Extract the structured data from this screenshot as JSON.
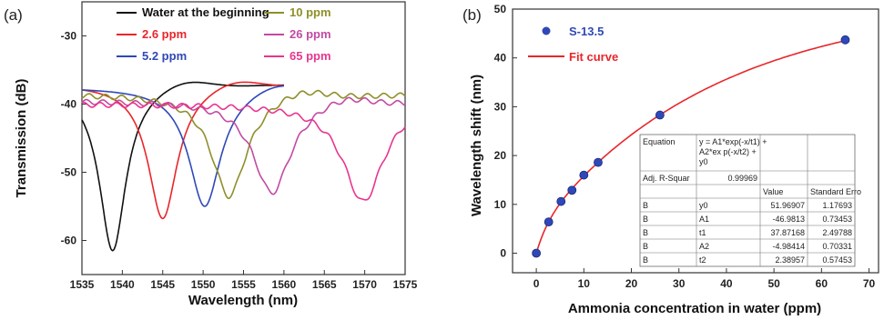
{
  "chart_data": [
    {
      "type": "line",
      "panel_label": "(a)",
      "xlabel": "Wavelength (nm)",
      "ylabel": "Transmission (dB)",
      "xlim": [
        1535,
        1575
      ],
      "ylim": [
        -65,
        -25
      ],
      "xticks": [
        "1535",
        "1540",
        "1545",
        "1550",
        "1555",
        "1560",
        "1565",
        "1570",
        "1575"
      ],
      "yticks": [
        "-30",
        "-40",
        "-50",
        "-60"
      ],
      "legend_position": "top",
      "series": [
        {
          "name": "Water at the beginning",
          "color": "#111111",
          "x_range": [
            1535,
            1560
          ],
          "dip_center": 1538.8,
          "dip_depth": -61.5,
          "baseline": -37
        },
        {
          "name": "2.6 ppm",
          "color": "#e8262b",
          "x_range": [
            1535,
            1560
          ],
          "dip_center": 1545.0,
          "dip_depth": -56.8,
          "baseline": -37
        },
        {
          "name": "5.2 ppm",
          "color": "#2f48b8",
          "x_range": [
            1535,
            1560
          ],
          "dip_center": 1550.2,
          "dip_depth": -55.0,
          "baseline": -37.5
        },
        {
          "name": "10 ppm",
          "color": "#8f8f2a",
          "x_range": [
            1535,
            1575
          ],
          "dip_center": 1553.2,
          "dip_depth": -53.5,
          "baseline": -38.5
        },
        {
          "name": "26 ppm",
          "color": "#c24aa3",
          "x_range": [
            1535,
            1575
          ],
          "dip_center": 1558.5,
          "dip_depth": -53.0,
          "baseline": -39.5
        },
        {
          "name": "65 ppm",
          "color": "#e8358f",
          "x_range": [
            1535,
            1575
          ],
          "dip_center": 1569.8,
          "dip_depth": -54.3,
          "baseline": -40
        }
      ]
    },
    {
      "type": "scatter",
      "panel_label": "(b)",
      "xlabel": "Ammonia concentration in water (ppm)",
      "ylabel": "Wavelength shift (nm)",
      "xlim": [
        -5,
        72
      ],
      "ylim": [
        -4,
        50
      ],
      "xticks": [
        "0",
        "10",
        "20",
        "30",
        "40",
        "50",
        "60",
        "70"
      ],
      "yticks": [
        "0",
        "10",
        "20",
        "30",
        "40",
        "50"
      ],
      "legend_position": "top-left",
      "series": [
        {
          "name": "S-13.5",
          "color": "#2f48b8",
          "x": [
            0,
            2.6,
            5.2,
            7.5,
            10,
            13,
            26,
            65
          ],
          "y": [
            0,
            6.4,
            10.6,
            12.9,
            16.0,
            18.6,
            28.3,
            43.7
          ]
        },
        {
          "name": "Fit curve",
          "color": "#e8262b",
          "params": {
            "y0": 51.96907,
            "A1": -46.9813,
            "t1": 37.87168,
            "A2": -4.98414,
            "t2": 2.38957
          }
        }
      ],
      "fit_table": {
        "header_row": [
          "Equation",
          "y = A1*exp(-x/t1) + A2*ex p(-x/t2) + y0",
          ""
        ],
        "adj_row": [
          "Adj. R-Squar",
          "0.99969"
        ],
        "col_headers": [
          "",
          "",
          "Value",
          "Standard Erro"
        ],
        "rows": [
          [
            "B",
            "y0",
            "51.96907",
            "1.17693"
          ],
          [
            "B",
            "A1",
            "-46.9813",
            "0.73453"
          ],
          [
            "B",
            "t1",
            "37.87168",
            "2.49788"
          ],
          [
            "B",
            "A2",
            "-4.98414",
            "0.70331"
          ],
          [
            "B",
            "t2",
            "2.38957",
            "0.57453"
          ]
        ]
      }
    }
  ]
}
